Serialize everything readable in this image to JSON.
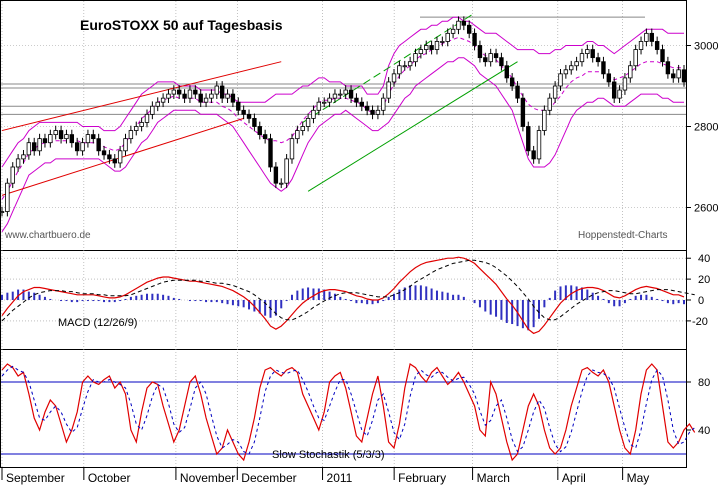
{
  "chart_data": {
    "type": "candlestick",
    "title": "EuroSTOXX 50 auf Tagesbasis",
    "credit_left": "www.chartbuero.de",
    "credit_right": "Hoppenstedt-Charts",
    "x_months": [
      "September",
      "October",
      "November",
      "December",
      "2011",
      "February",
      "March",
      "April",
      "May"
    ],
    "price_panel": {
      "ylim": [
        2500,
        3100
      ],
      "yticks": [
        2600,
        2800,
        3000
      ],
      "close_series": [
        2590,
        2660,
        2700,
        2720,
        2730,
        2760,
        2740,
        2770,
        2760,
        2780,
        2790,
        2770,
        2780,
        2760,
        2740,
        2760,
        2780,
        2770,
        2740,
        2730,
        2720,
        2710,
        2740,
        2770,
        2790,
        2800,
        2810,
        2830,
        2850,
        2860,
        2870,
        2880,
        2890,
        2880,
        2870,
        2890,
        2880,
        2860,
        2870,
        2880,
        2900,
        2870,
        2880,
        2860,
        2840,
        2830,
        2820,
        2800,
        2780,
        2770,
        2700,
        2660,
        2660,
        2720,
        2770,
        2790,
        2800,
        2820,
        2840,
        2860,
        2860,
        2870,
        2880,
        2880,
        2890,
        2870,
        2860,
        2850,
        2840,
        2830,
        2840,
        2870,
        2910,
        2930,
        2950,
        2950,
        2960,
        2980,
        2990,
        3000,
        2990,
        3010,
        3010,
        3030,
        3040,
        3060,
        3050,
        3030,
        3000,
        2970,
        2960,
        2980,
        2970,
        2950,
        2920,
        2900,
        2870,
        2800,
        2740,
        2720,
        2790,
        2840,
        2870,
        2900,
        2930,
        2940,
        2950,
        2960,
        2980,
        2990,
        2970,
        2960,
        2930,
        2910,
        2870,
        2890,
        2920,
        2950,
        2990,
        3010,
        3030,
        3010,
        2990,
        2960,
        2930,
        2920,
        2940,
        2910
      ],
      "upper_band": [
        2700,
        2720,
        2740,
        2760,
        2770,
        2790,
        2800,
        2810,
        2810,
        2810,
        2810,
        2810,
        2810,
        2810,
        2810,
        2800,
        2800,
        2800,
        2800,
        2790,
        2790,
        2790,
        2800,
        2820,
        2840,
        2860,
        2880,
        2890,
        2900,
        2910,
        2910,
        2910,
        2910,
        2900,
        2900,
        2900,
        2900,
        2890,
        2890,
        2890,
        2890,
        2880,
        2880,
        2870,
        2860,
        2860,
        2860,
        2860,
        2860,
        2860,
        2870,
        2880,
        2880,
        2880,
        2880,
        2890,
        2900,
        2900,
        2910,
        2920,
        2920,
        2910,
        2910,
        2910,
        2900,
        2900,
        2900,
        2900,
        2880,
        2880,
        2880,
        2900,
        2950,
        2980,
        3000,
        3010,
        3020,
        3030,
        3040,
        3040,
        3050,
        3050,
        3060,
        3060,
        3070,
        3070,
        3060,
        3060,
        3050,
        3040,
        3030,
        3030,
        3030,
        3020,
        3010,
        3000,
        2990,
        2990,
        2990,
        2990,
        2980,
        2980,
        2980,
        2990,
        2990,
        3000,
        3000,
        3000,
        3000,
        3010,
        3010,
        3000,
        3000,
        2990,
        2980,
        2990,
        3000,
        3010,
        3020,
        3030,
        3040,
        3040,
        3040,
        3040,
        3030,
        3030,
        3030,
        3030
      ],
      "lower_band": [
        2540,
        2560,
        2590,
        2620,
        2650,
        2680,
        2690,
        2700,
        2710,
        2710,
        2720,
        2720,
        2720,
        2720,
        2720,
        2720,
        2720,
        2720,
        2720,
        2710,
        2700,
        2690,
        2690,
        2700,
        2720,
        2740,
        2760,
        2770,
        2790,
        2810,
        2820,
        2830,
        2840,
        2840,
        2840,
        2840,
        2840,
        2830,
        2830,
        2830,
        2830,
        2820,
        2810,
        2800,
        2780,
        2760,
        2740,
        2720,
        2700,
        2680,
        2660,
        2650,
        2640,
        2650,
        2670,
        2700,
        2730,
        2760,
        2780,
        2800,
        2810,
        2820,
        2830,
        2830,
        2840,
        2830,
        2820,
        2810,
        2800,
        2790,
        2790,
        2800,
        2810,
        2830,
        2850,
        2870,
        2880,
        2900,
        2910,
        2920,
        2930,
        2940,
        2950,
        2960,
        2960,
        2970,
        2970,
        2960,
        2950,
        2930,
        2920,
        2910,
        2900,
        2880,
        2860,
        2840,
        2800,
        2760,
        2720,
        2700,
        2700,
        2700,
        2710,
        2730,
        2760,
        2790,
        2820,
        2840,
        2850,
        2860,
        2860,
        2870,
        2870,
        2860,
        2850,
        2850,
        2850,
        2860,
        2870,
        2880,
        2880,
        2880,
        2880,
        2870,
        2870,
        2860,
        2860,
        2860
      ],
      "trend_lines": [
        {
          "name": "upper-channel",
          "color": "#e00000",
          "points": [
            [
              0,
              2790
            ],
            [
              52,
              2960
            ]
          ]
        },
        {
          "name": "lower-channel",
          "color": "#e00000",
          "points": [
            [
              0,
              2630
            ],
            [
              45,
              2820
            ]
          ]
        },
        {
          "name": "green-upper",
          "color": "#00a000",
          "points": [
            [
              56,
              2810
            ],
            [
              88,
              3080
            ]
          ]
        },
        {
          "name": "green-lower",
          "color": "#00a000",
          "points": [
            [
              57,
              2640
            ],
            [
              96,
              2960
            ]
          ]
        }
      ],
      "horizontal_lines": [
        2850,
        2830,
        2895,
        2905,
        3070
      ]
    },
    "macd_panel": {
      "label": "MACD (12/26/9)",
      "ylim": [
        -45,
        45
      ],
      "yticks": [
        40,
        20,
        0,
        -20
      ],
      "macd": [
        -15,
        -8,
        -2,
        4,
        8,
        10,
        12,
        12,
        11,
        10,
        9,
        8,
        7,
        6,
        5,
        5,
        5,
        5,
        4,
        3,
        2,
        2,
        3,
        5,
        8,
        11,
        14,
        17,
        19,
        21,
        22,
        22,
        21,
        20,
        19,
        18,
        18,
        17,
        16,
        15,
        14,
        13,
        11,
        9,
        6,
        3,
        -1,
        -6,
        -12,
        -18,
        -25,
        -28,
        -25,
        -20,
        -14,
        -8,
        -3,
        1,
        4,
        7,
        9,
        10,
        10,
        9,
        8,
        6,
        4,
        3,
        1,
        0,
        0,
        2,
        6,
        11,
        17,
        22,
        27,
        31,
        34,
        36,
        37,
        38,
        39,
        40,
        40,
        41,
        40,
        38,
        35,
        30,
        25,
        20,
        15,
        8,
        1,
        -5,
        -12,
        -20,
        -28,
        -32,
        -30,
        -24,
        -17,
        -10,
        -3,
        2,
        6,
        9,
        11,
        12,
        12,
        11,
        9,
        6,
        3,
        2,
        4,
        7,
        10,
        12,
        13,
        12,
        11,
        9,
        7,
        5,
        5,
        3
      ],
      "signal": [
        -20,
        -15,
        -10,
        -6,
        -2,
        2,
        5,
        7,
        8,
        9,
        9,
        9,
        8,
        8,
        7,
        6,
        6,
        6,
        5,
        5,
        4,
        4,
        4,
        4,
        5,
        7,
        9,
        11,
        13,
        15,
        17,
        18,
        19,
        19,
        19,
        19,
        19,
        18,
        18,
        17,
        16,
        16,
        15,
        14,
        12,
        10,
        8,
        5,
        1,
        -3,
        -8,
        -13,
        -17,
        -19,
        -19,
        -17,
        -14,
        -11,
        -7,
        -4,
        -1,
        2,
        4,
        6,
        7,
        7,
        7,
        6,
        5,
        4,
        3,
        3,
        3,
        5,
        7,
        10,
        13,
        17,
        20,
        23,
        26,
        29,
        31,
        33,
        35,
        36,
        37,
        38,
        38,
        37,
        36,
        34,
        31,
        27,
        23,
        18,
        13,
        7,
        1,
        -6,
        -12,
        -17,
        -19,
        -19,
        -16,
        -12,
        -8,
        -4,
        -1,
        2,
        5,
        7,
        8,
        9,
        9,
        8,
        7,
        6,
        6,
        7,
        8,
        9,
        10,
        10,
        10,
        9,
        8,
        7,
        6,
        5
      ]
    },
    "stoch_panel": {
      "label": "Slow Stochastik (5/3/3)",
      "ylim": [
        10,
        105
      ],
      "yticks": [
        80,
        40
      ],
      "levels": [
        80,
        20
      ],
      "k": [
        90,
        95,
        92,
        85,
        88,
        70,
        50,
        40,
        55,
        65,
        60,
        45,
        30,
        40,
        55,
        80,
        85,
        80,
        78,
        82,
        85,
        75,
        80,
        70,
        40,
        30,
        55,
        75,
        80,
        78,
        60,
        45,
        30,
        40,
        60,
        80,
        85,
        70,
        50,
        35,
        20,
        25,
        40,
        30,
        20,
        15,
        30,
        50,
        75,
        90,
        92,
        88,
        85,
        90,
        92,
        88,
        70,
        60,
        50,
        40,
        55,
        80,
        85,
        88,
        75,
        55,
        35,
        30,
        50,
        70,
        85,
        60,
        30,
        25,
        45,
        75,
        95,
        92,
        85,
        80,
        88,
        92,
        85,
        78,
        82,
        88,
        80,
        70,
        60,
        40,
        35,
        80,
        70,
        50,
        30,
        15,
        20,
        40,
        60,
        70,
        60,
        40,
        25,
        20,
        25,
        40,
        60,
        75,
        90,
        92,
        88,
        85,
        90,
        80,
        60,
        40,
        25,
        20,
        40,
        70,
        90,
        95,
        90,
        60,
        30,
        25,
        30,
        40,
        45,
        38
      ],
      "d": [
        85,
        90,
        93,
        90,
        88,
        80,
        65,
        50,
        48,
        55,
        60,
        55,
        45,
        38,
        42,
        58,
        72,
        82,
        80,
        80,
        82,
        80,
        78,
        75,
        62,
        45,
        40,
        52,
        68,
        78,
        75,
        62,
        45,
        38,
        42,
        58,
        75,
        80,
        70,
        52,
        35,
        25,
        28,
        32,
        30,
        22,
        20,
        30,
        50,
        72,
        85,
        90,
        88,
        87,
        89,
        90,
        82,
        72,
        60,
        50,
        48,
        60,
        72,
        82,
        82,
        70,
        55,
        40,
        35,
        48,
        65,
        70,
        55,
        38,
        32,
        45,
        68,
        85,
        90,
        86,
        84,
        88,
        88,
        84,
        81,
        83,
        84,
        78,
        70,
        56,
        44,
        48,
        60,
        65,
        50,
        32,
        22,
        26,
        40,
        55,
        65,
        58,
        42,
        28,
        22,
        26,
        38,
        55,
        72,
        85,
        90,
        88,
        87,
        84,
        75,
        58,
        42,
        28,
        25,
        40,
        62,
        82,
        90,
        85,
        65,
        40,
        28,
        30,
        38,
        42
      ]
    }
  }
}
